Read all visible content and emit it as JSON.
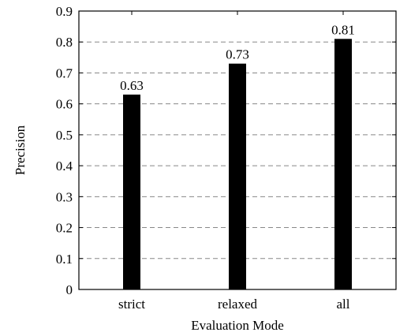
{
  "chart_data": {
    "type": "bar",
    "categories": [
      "strict",
      "relaxed",
      "all"
    ],
    "values": [
      0.63,
      0.73,
      0.81
    ],
    "value_labels": [
      "0.63",
      "0.73",
      "0.81"
    ],
    "xlabel": "Evaluation Mode",
    "ylabel": "Precision",
    "ylim": [
      0,
      0.9
    ],
    "yticks": [
      0,
      0.1,
      0.2,
      0.3,
      0.4,
      0.5,
      0.6,
      0.7,
      0.8,
      0.9
    ],
    "ytick_labels": [
      "0",
      "0.1",
      "0.2",
      "0.3",
      "0.4",
      "0.5",
      "0.6",
      "0.7",
      "0.8",
      "0.9"
    ],
    "grid": "horizontal-dashed",
    "bar_color": "#000000",
    "grid_color": "#888888"
  }
}
